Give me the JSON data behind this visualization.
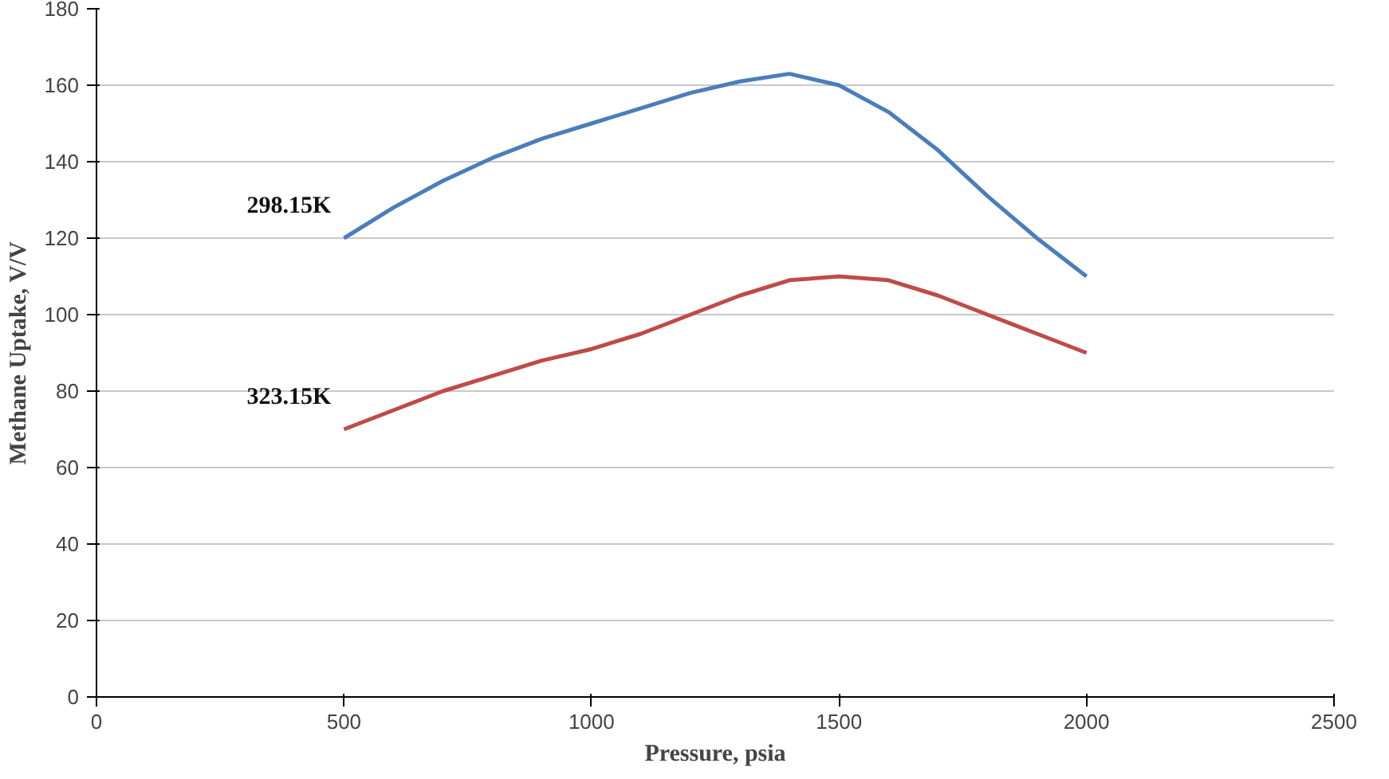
{
  "chart_data": {
    "type": "line",
    "xlabel": "Pressure, psia",
    "ylabel": "Methane Uptake, V/V",
    "xlim": [
      0,
      2500
    ],
    "xticks": [
      0,
      500,
      1000,
      1500,
      2000,
      2500
    ],
    "ylim": [
      0,
      180
    ],
    "yticks": [
      0,
      20,
      40,
      60,
      80,
      100,
      120,
      140,
      160,
      180
    ],
    "grid": "y",
    "marker": "none",
    "line_style": "solid",
    "x": [
      500,
      600,
      700,
      800,
      900,
      1000,
      1100,
      1200,
      1300,
      1400,
      1500,
      1600,
      1700,
      1800,
      1900,
      2000
    ],
    "series": [
      {
        "name": "298.15K",
        "color": "#4a7ebb",
        "values": [
          120,
          128,
          135,
          141,
          146,
          150,
          154,
          158,
          161,
          163,
          160,
          153,
          143,
          131,
          120,
          110
        ]
      },
      {
        "name": "323.15K",
        "color": "#be4b48",
        "values": [
          70,
          75,
          80,
          84,
          88,
          91,
          95,
          100,
          105,
          109,
          110,
          109,
          105,
          100,
          95,
          90
        ]
      }
    ]
  }
}
